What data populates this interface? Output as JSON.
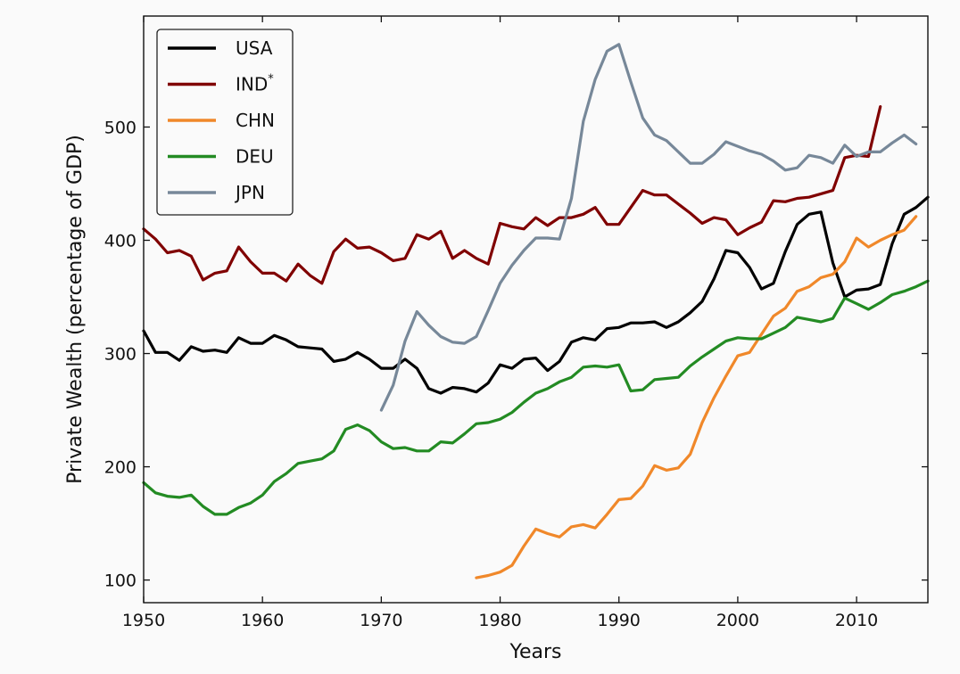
{
  "chart_data": {
    "type": "line",
    "title": "",
    "xlabel": "Years",
    "ylabel": "Private Wealth (percentage of GDP)",
    "xlim": [
      1950,
      2016
    ],
    "ylim": [
      80,
      598
    ],
    "xticks": [
      "1950",
      "1960",
      "1970",
      "1980",
      "1990",
      "2000",
      "2010"
    ],
    "yticks": [
      "100",
      "200",
      "300",
      "400",
      "500"
    ],
    "grid": false,
    "legend": {
      "position": "top-left",
      "frame": true
    },
    "series": [
      {
        "name": "USA",
        "color": "#000000",
        "x": [
          1950,
          1951,
          1952,
          1953,
          1954,
          1955,
          1956,
          1957,
          1958,
          1959,
          1960,
          1961,
          1962,
          1963,
          1964,
          1965,
          1966,
          1967,
          1968,
          1969,
          1970,
          1971,
          1972,
          1973,
          1974,
          1975,
          1976,
          1977,
          1978,
          1979,
          1980,
          1981,
          1982,
          1983,
          1984,
          1985,
          1986,
          1987,
          1988,
          1989,
          1990,
          1991,
          1992,
          1993,
          1994,
          1995,
          1996,
          1997,
          1998,
          1999,
          2000,
          2001,
          2002,
          2003,
          2004,
          2005,
          2006,
          2007,
          2008,
          2009,
          2010,
          2011,
          2012,
          2013,
          2014,
          2015,
          2016
        ],
        "y": [
          320,
          301,
          301,
          294,
          306,
          302,
          303,
          301,
          314,
          309,
          309,
          316,
          312,
          306,
          305,
          304,
          293,
          295,
          301,
          295,
          287,
          287,
          295,
          287,
          269,
          265,
          270,
          269,
          266,
          274,
          290,
          287,
          295,
          296,
          285,
          293,
          310,
          314,
          312,
          322,
          323,
          327,
          327,
          328,
          323,
          328,
          336,
          346,
          366,
          391,
          389,
          376,
          357,
          362,
          390,
          414,
          423,
          425,
          380,
          350,
          356,
          357,
          361,
          397,
          423,
          429,
          438
        ]
      },
      {
        "name": "IND",
        "legend_superscript": "*",
        "color": "#800000",
        "x": [
          1950,
          1951,
          1952,
          1953,
          1954,
          1955,
          1956,
          1957,
          1958,
          1959,
          1960,
          1961,
          1962,
          1963,
          1964,
          1965,
          1966,
          1967,
          1968,
          1969,
          1970,
          1971,
          1972,
          1973,
          1974,
          1975,
          1976,
          1977,
          1978,
          1979,
          1980,
          1981,
          1982,
          1983,
          1984,
          1985,
          1986,
          1987,
          1988,
          1989,
          1990,
          1991,
          1992,
          1993,
          1994,
          1995,
          1996,
          1997,
          1998,
          1999,
          2000,
          2001,
          2002,
          2003,
          2004,
          2005,
          2006,
          2007,
          2008,
          2009,
          2010,
          2011,
          2012
        ],
        "y": [
          410,
          401,
          389,
          391,
          386,
          365,
          371,
          373,
          394,
          381,
          371,
          371,
          364,
          379,
          369,
          362,
          390,
          401,
          393,
          394,
          389,
          382,
          384,
          405,
          401,
          408,
          384,
          391,
          384,
          379,
          415,
          412,
          410,
          420,
          413,
          420,
          420,
          423,
          429,
          414,
          414,
          429,
          444,
          440,
          440,
          432,
          424,
          415,
          420,
          418,
          405,
          411,
          416,
          435,
          434,
          437,
          438,
          441,
          444,
          473,
          475,
          474,
          518
        ]
      },
      {
        "name": "CHN",
        "color": "#F0882A",
        "x": [
          1978,
          1979,
          1980,
          1981,
          1982,
          1983,
          1984,
          1985,
          1986,
          1987,
          1988,
          1989,
          1990,
          1991,
          1992,
          1993,
          1994,
          1995,
          1996,
          1997,
          1998,
          1999,
          2000,
          2001,
          2002,
          2003,
          2004,
          2005,
          2006,
          2007,
          2008,
          2009,
          2010,
          2011,
          2012,
          2013,
          2014,
          2015
        ],
        "y": [
          102,
          104,
          107,
          113,
          130,
          145,
          141,
          138,
          147,
          149,
          146,
          158,
          171,
          172,
          183,
          201,
          197,
          199,
          211,
          239,
          261,
          280,
          298,
          301,
          317,
          333,
          340,
          355,
          359,
          367,
          370,
          381,
          402,
          394,
          400,
          405,
          409,
          421
        ]
      },
      {
        "name": "DEU",
        "color": "#238B23",
        "x": [
          1950,
          1951,
          1952,
          1953,
          1954,
          1955,
          1956,
          1957,
          1958,
          1959,
          1960,
          1961,
          1962,
          1963,
          1964,
          1965,
          1966,
          1967,
          1968,
          1969,
          1970,
          1971,
          1972,
          1973,
          1974,
          1975,
          1976,
          1977,
          1978,
          1979,
          1980,
          1981,
          1982,
          1983,
          1984,
          1985,
          1986,
          1987,
          1988,
          1989,
          1990,
          1991,
          1992,
          1993,
          1994,
          1995,
          1996,
          1997,
          1998,
          1999,
          2000,
          2001,
          2002,
          2003,
          2004,
          2005,
          2006,
          2007,
          2008,
          2009,
          2010,
          2011,
          2012,
          2013,
          2014,
          2015,
          2016
        ],
        "y": [
          186,
          177,
          174,
          173,
          175,
          165,
          158,
          158,
          164,
          168,
          175,
          187,
          194,
          203,
          205,
          207,
          214,
          233,
          237,
          232,
          222,
          216,
          217,
          214,
          214,
          222,
          221,
          229,
          238,
          239,
          242,
          248,
          257,
          265,
          269,
          275,
          279,
          288,
          289,
          288,
          290,
          267,
          268,
          277,
          278,
          279,
          289,
          297,
          304,
          311,
          314,
          313,
          313,
          318,
          323,
          332,
          330,
          328,
          331,
          349,
          344,
          339,
          345,
          352,
          355,
          359,
          364
        ]
      },
      {
        "name": "JPN",
        "color": "#778899",
        "x": [
          1970,
          1971,
          1972,
          1973,
          1974,
          1975,
          1976,
          1977,
          1978,
          1979,
          1980,
          1981,
          1982,
          1983,
          1984,
          1985,
          1986,
          1987,
          1988,
          1989,
          1990,
          1991,
          1992,
          1993,
          1994,
          1995,
          1996,
          1997,
          1998,
          1999,
          2000,
          2001,
          2002,
          2003,
          2004,
          2005,
          2006,
          2007,
          2008,
          2009,
          2010,
          2011,
          2012,
          2013,
          2014,
          2015
        ],
        "y": [
          250,
          272,
          311,
          337,
          325,
          315,
          310,
          309,
          315,
          338,
          362,
          378,
          391,
          402,
          402,
          401,
          437,
          505,
          542,
          567,
          573,
          540,
          508,
          493,
          488,
          478,
          468,
          468,
          476,
          487,
          483,
          479,
          476,
          470,
          462,
          464,
          475,
          473,
          468,
          484,
          474,
          478,
          478,
          486,
          493,
          485
        ]
      }
    ]
  }
}
